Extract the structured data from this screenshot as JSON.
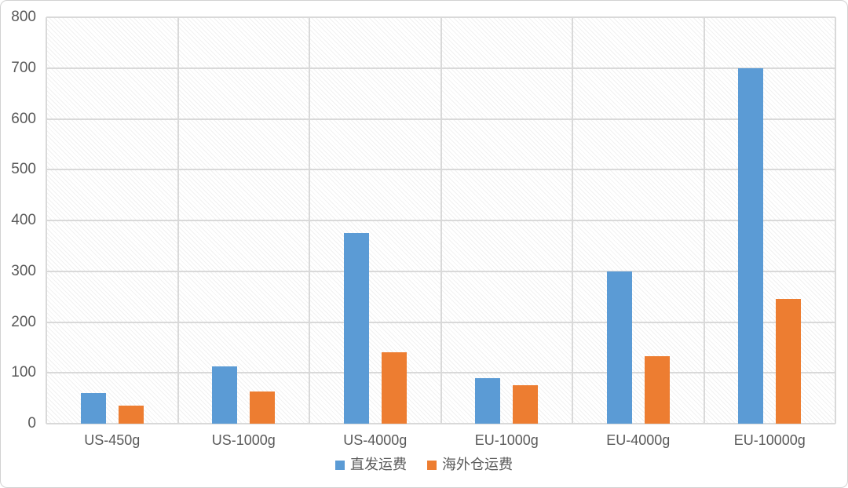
{
  "chart_data": {
    "type": "bar",
    "title": "",
    "xlabel": "",
    "ylabel": "",
    "categories": [
      "US-450g",
      "US-1000g",
      "US-4000g",
      "EU-1000g",
      "EU-4000g",
      "EU-10000g"
    ],
    "series": [
      {
        "key": "direct-shipping",
        "name": "直发运费",
        "color": "#5B9BD5",
        "values": [
          60,
          113,
          375,
          89,
          300,
          700
        ]
      },
      {
        "key": "overseas-warehouse-shipping",
        "name": "海外仓运费",
        "color": "#ED7D31",
        "values": [
          35,
          63,
          140,
          75,
          133,
          245
        ]
      }
    ],
    "ylim": [
      0,
      800
    ],
    "yticks": [
      0,
      100,
      200,
      300,
      400,
      500,
      600,
      700,
      800
    ],
    "grid": true,
    "grid_color": "#d9d9d9",
    "axis_text_color": "#595959",
    "plot_hatch": "light-diagonal",
    "legend_position": "bottom"
  }
}
